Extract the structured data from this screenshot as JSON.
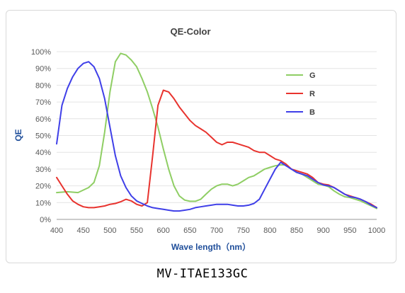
{
  "caption": "MV-ITAE133GC",
  "chart_data": {
    "type": "line",
    "title": "QE-Color",
    "xlabel": "Wave length（nm）",
    "ylabel": "QE",
    "xlim": [
      400,
      1000
    ],
    "ylim": [
      0,
      100
    ],
    "x_ticks": [
      "400",
      "450",
      "500",
      "550",
      "600",
      "650",
      "700",
      "750",
      "800",
      "850",
      "900",
      "950",
      "1000"
    ],
    "y_ticks": [
      "0%",
      "10%",
      "20%",
      "30%",
      "40%",
      "50%",
      "60%",
      "70%",
      "80%",
      "90%",
      "100%"
    ],
    "grid": "horizontal",
    "legend_position": "right",
    "series": [
      {
        "name": "G",
        "color": "#8fce64",
        "x": [
          400,
          420,
          440,
          460,
          470,
          480,
          490,
          500,
          510,
          520,
          530,
          540,
          550,
          560,
          570,
          580,
          590,
          600,
          610,
          620,
          630,
          640,
          650,
          660,
          670,
          680,
          690,
          700,
          710,
          720,
          730,
          740,
          750,
          760,
          770,
          780,
          790,
          800,
          810,
          820,
          830,
          840,
          850,
          860,
          870,
          880,
          890,
          900,
          910,
          920,
          930,
          940,
          950,
          960,
          970,
          980,
          990,
          1000
        ],
        "values": [
          16,
          16.5,
          16,
          19,
          22,
          32,
          52,
          76,
          94,
          99,
          98,
          95,
          91,
          84,
          76,
          66,
          55,
          42,
          30,
          20,
          14,
          11.5,
          10.8,
          10.8,
          12,
          15,
          18,
          20,
          21,
          21,
          20,
          21,
          23,
          25,
          26,
          28,
          30,
          31,
          32,
          32.5,
          32.5,
          30,
          28,
          27,
          25,
          23,
          21,
          20.5,
          19.5,
          17,
          15,
          13.5,
          13,
          12,
          11,
          9.5,
          8,
          6.5
        ]
      },
      {
        "name": "R",
        "color": "#e8332e",
        "x": [
          400,
          410,
          420,
          430,
          440,
          450,
          460,
          470,
          480,
          490,
          500,
          510,
          520,
          530,
          540,
          550,
          560,
          570,
          580,
          590,
          600,
          610,
          620,
          630,
          640,
          650,
          660,
          670,
          680,
          690,
          700,
          710,
          720,
          730,
          740,
          750,
          760,
          770,
          780,
          790,
          800,
          810,
          820,
          830,
          840,
          850,
          860,
          870,
          880,
          890,
          900,
          910,
          920,
          930,
          940,
          950,
          960,
          970,
          980,
          990,
          1000
        ],
        "values": [
          25,
          20,
          15,
          11,
          9,
          7.5,
          7,
          7,
          7.5,
          8,
          9,
          9.5,
          10.5,
          12,
          11,
          9,
          8,
          10,
          38,
          68,
          77,
          76,
          72,
          67,
          63,
          59,
          56,
          54,
          52,
          49,
          46,
          44.5,
          46,
          46,
          45,
          44,
          43,
          41,
          40,
          40,
          38,
          36,
          35,
          33,
          30,
          29,
          28,
          27,
          25,
          22,
          21,
          20.5,
          19,
          17,
          15,
          14,
          13,
          12,
          10.5,
          9,
          7
        ]
      },
      {
        "name": "B",
        "color": "#3f3fe8",
        "x": [
          400,
          410,
          420,
          430,
          440,
          450,
          460,
          470,
          480,
          490,
          500,
          510,
          520,
          530,
          540,
          550,
          560,
          570,
          580,
          590,
          600,
          610,
          620,
          630,
          640,
          650,
          660,
          670,
          680,
          690,
          700,
          710,
          720,
          730,
          740,
          750,
          760,
          770,
          780,
          790,
          800,
          810,
          820,
          830,
          840,
          850,
          860,
          870,
          880,
          890,
          900,
          910,
          920,
          930,
          940,
          950,
          960,
          970,
          980,
          990,
          1000
        ],
        "values": [
          45,
          68,
          78,
          85,
          90,
          93,
          94,
          91,
          84,
          72,
          55,
          38,
          26,
          19,
          14,
          11,
          9.5,
          8,
          7,
          6.5,
          6,
          5.5,
          5,
          5,
          5.5,
          6,
          7,
          7.5,
          8,
          8.5,
          9,
          9,
          9,
          8.5,
          8,
          8,
          8.5,
          9.5,
          12,
          18,
          24,
          30,
          34,
          32,
          30,
          28,
          27,
          26,
          24,
          22,
          20.5,
          20,
          19,
          17,
          15,
          13.5,
          13,
          12,
          10.5,
          8.5,
          7
        ]
      }
    ]
  }
}
